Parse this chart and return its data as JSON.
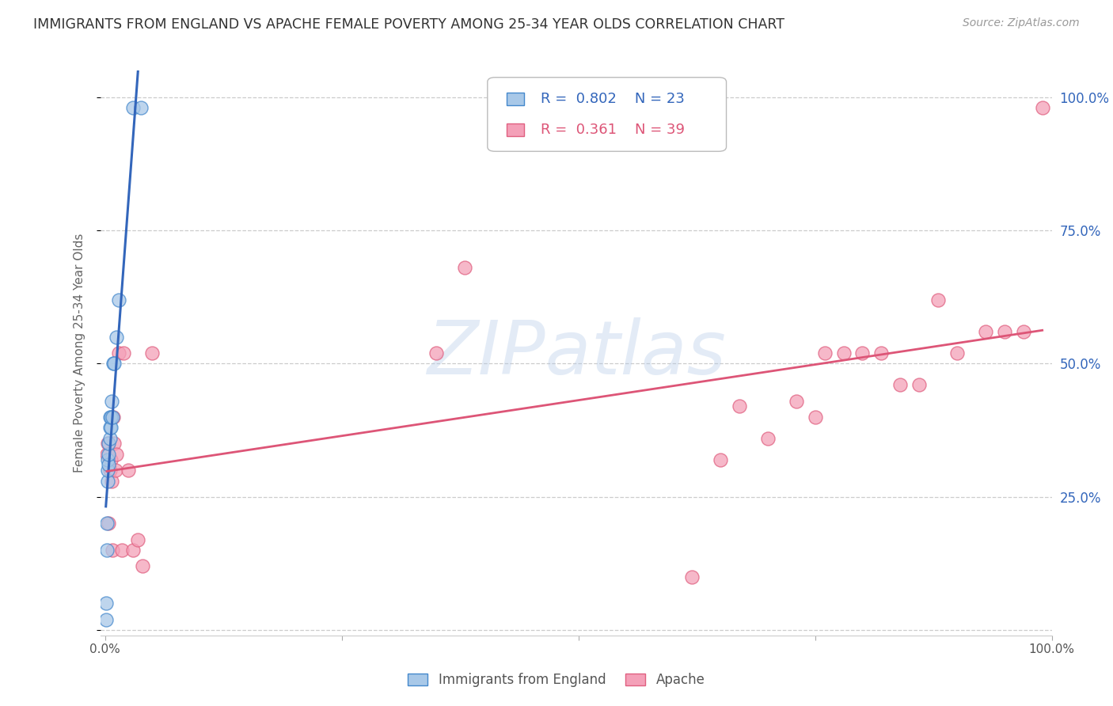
{
  "title": "IMMIGRANTS FROM ENGLAND VS APACHE FEMALE POVERTY AMONG 25-34 YEAR OLDS CORRELATION CHART",
  "source": "Source: ZipAtlas.com",
  "ylabel": "Female Poverty Among 25-34 Year Olds",
  "legend_label1": "Immigrants from England",
  "legend_label2": "Apache",
  "R1": "0.802",
  "N1": "23",
  "R2": "0.361",
  "N2": "39",
  "color_blue_fill": "#a8c8e8",
  "color_pink_fill": "#f4a0b8",
  "color_blue_edge": "#4488cc",
  "color_pink_edge": "#e06080",
  "color_blue_line": "#3366bb",
  "color_pink_line": "#dd5577",
  "color_blue_text": "#3366bb",
  "color_pink_text": "#dd5577",
  "background_color": "#ffffff",
  "grid_color": "#cccccc",
  "blue_x": [
    0.001,
    0.001,
    0.002,
    0.002,
    0.003,
    0.003,
    0.003,
    0.004,
    0.004,
    0.004,
    0.005,
    0.005,
    0.005,
    0.006,
    0.006,
    0.007,
    0.008,
    0.009,
    0.01,
    0.012,
    0.015,
    0.03,
    0.038
  ],
  "blue_y": [
    0.02,
    0.05,
    0.15,
    0.2,
    0.28,
    0.3,
    0.32,
    0.31,
    0.33,
    0.35,
    0.36,
    0.38,
    0.4,
    0.38,
    0.4,
    0.43,
    0.4,
    0.5,
    0.5,
    0.55,
    0.62,
    0.98,
    0.98
  ],
  "pink_x": [
    0.002,
    0.003,
    0.004,
    0.005,
    0.006,
    0.007,
    0.008,
    0.009,
    0.01,
    0.011,
    0.012,
    0.015,
    0.018,
    0.02,
    0.025,
    0.03,
    0.035,
    0.04,
    0.05,
    0.35,
    0.38,
    0.62,
    0.65,
    0.67,
    0.7,
    0.73,
    0.75,
    0.76,
    0.78,
    0.8,
    0.82,
    0.84,
    0.86,
    0.88,
    0.9,
    0.93,
    0.95,
    0.97,
    0.99
  ],
  "pink_y": [
    0.33,
    0.35,
    0.2,
    0.3,
    0.32,
    0.28,
    0.15,
    0.4,
    0.35,
    0.3,
    0.33,
    0.52,
    0.15,
    0.52,
    0.3,
    0.15,
    0.17,
    0.12,
    0.52,
    0.52,
    0.68,
    0.1,
    0.32,
    0.42,
    0.36,
    0.43,
    0.4,
    0.52,
    0.52,
    0.52,
    0.52,
    0.46,
    0.46,
    0.62,
    0.52,
    0.56,
    0.56,
    0.56,
    0.98
  ],
  "watermark_text": "ZIPatlas",
  "watermark_color": "#b0c8e8",
  "watermark_alpha": 0.35
}
